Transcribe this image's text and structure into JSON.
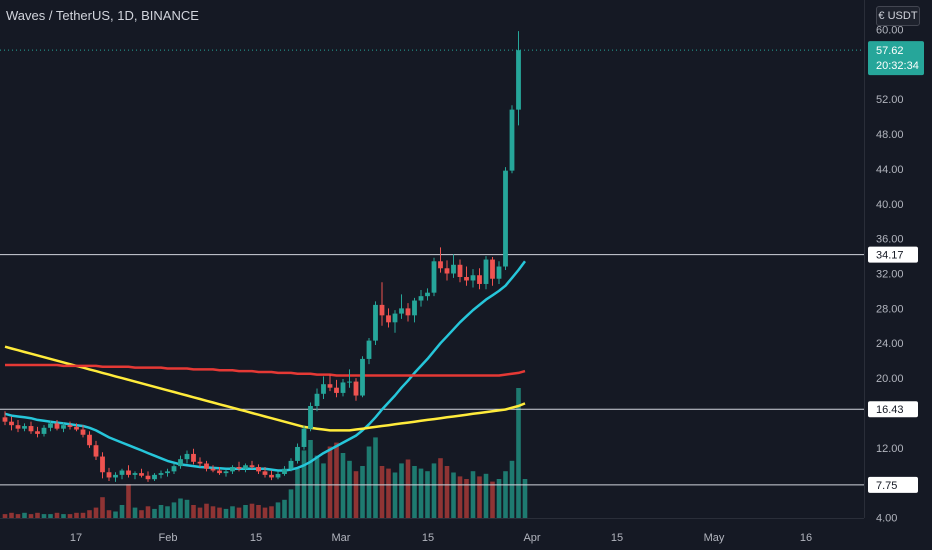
{
  "header": {
    "title": "Waves / TetherUS, 1D, BINANCE"
  },
  "currency": {
    "badge_label": "USDT",
    "symbol_glyph": "€"
  },
  "price_badge": {
    "price": "57.62",
    "countdown": "20:32:34",
    "color": "#26a69a"
  },
  "horizontal_lines": [
    {
      "value": 34.17,
      "label": "34.17"
    },
    {
      "value": 16.43,
      "label": "16.43"
    },
    {
      "value": 7.75,
      "label": "7.75"
    }
  ],
  "colors": {
    "up": "#26a69a",
    "down": "#ef5350",
    "up_volume": "#1e7a70",
    "down_volume": "#8f3434",
    "ma_fast": "#26c6da",
    "ma_mid": "#ffeb3b",
    "ma_slow": "#e53935",
    "background": "#151924"
  },
  "chart_data": {
    "type": "candlestick",
    "title": "Waves / TetherUS, 1D, BINANCE",
    "x_axis": {
      "tick_labels": [
        "17",
        "Feb",
        "15",
        "Mar",
        "15",
        "Apr",
        "15",
        "May",
        "16"
      ]
    },
    "y_axis": {
      "tick_labels": [
        "60.00",
        "56.00",
        "52.00",
        "48.00",
        "44.00",
        "40.00",
        "36.00",
        "32.00",
        "28.00",
        "24.00",
        "20.00",
        "16.00",
        "12.00",
        "8.00",
        "4.00"
      ],
      "range": [
        2,
        62
      ]
    },
    "last_price": 57.62,
    "candles": [
      {
        "o": 15.5,
        "h": 16.2,
        "l": 14.6,
        "c": 15.0
      },
      {
        "o": 15.0,
        "h": 15.6,
        "l": 14.0,
        "c": 14.6
      },
      {
        "o": 14.6,
        "h": 15.2,
        "l": 13.8,
        "c": 14.2
      },
      {
        "o": 14.2,
        "h": 14.8,
        "l": 13.9,
        "c": 14.5
      },
      {
        "o": 14.5,
        "h": 15.0,
        "l": 13.6,
        "c": 13.9
      },
      {
        "o": 13.9,
        "h": 14.4,
        "l": 13.2,
        "c": 13.6
      },
      {
        "o": 13.6,
        "h": 14.6,
        "l": 13.3,
        "c": 14.3
      },
      {
        "o": 14.3,
        "h": 15.1,
        "l": 13.9,
        "c": 14.8
      },
      {
        "o": 14.8,
        "h": 15.2,
        "l": 14.0,
        "c": 14.2
      },
      {
        "o": 14.2,
        "h": 14.9,
        "l": 13.8,
        "c": 14.6
      },
      {
        "o": 14.6,
        "h": 15.0,
        "l": 14.1,
        "c": 14.4
      },
      {
        "o": 14.4,
        "h": 14.8,
        "l": 13.9,
        "c": 14.1
      },
      {
        "o": 14.1,
        "h": 14.6,
        "l": 13.2,
        "c": 13.5
      },
      {
        "o": 13.5,
        "h": 13.9,
        "l": 12.0,
        "c": 12.3
      },
      {
        "o": 12.3,
        "h": 12.8,
        "l": 10.6,
        "c": 11.0
      },
      {
        "o": 11.0,
        "h": 11.5,
        "l": 8.5,
        "c": 9.2
      },
      {
        "o": 9.2,
        "h": 9.7,
        "l": 8.2,
        "c": 8.6
      },
      {
        "o": 8.6,
        "h": 9.2,
        "l": 8.1,
        "c": 8.9
      },
      {
        "o": 8.9,
        "h": 9.6,
        "l": 8.4,
        "c": 9.4
      },
      {
        "o": 9.4,
        "h": 10.0,
        "l": 8.6,
        "c": 8.9
      },
      {
        "o": 8.9,
        "h": 9.3,
        "l": 8.4,
        "c": 9.1
      },
      {
        "o": 9.1,
        "h": 9.6,
        "l": 8.6,
        "c": 8.8
      },
      {
        "o": 8.8,
        "h": 9.3,
        "l": 8.1,
        "c": 8.4
      },
      {
        "o": 8.4,
        "h": 9.1,
        "l": 8.2,
        "c": 8.9
      },
      {
        "o": 8.9,
        "h": 9.4,
        "l": 8.5,
        "c": 9.1
      },
      {
        "o": 9.1,
        "h": 9.6,
        "l": 8.7,
        "c": 9.3
      },
      {
        "o": 9.3,
        "h": 10.2,
        "l": 9.0,
        "c": 9.9
      },
      {
        "o": 9.9,
        "h": 11.1,
        "l": 9.6,
        "c": 10.7
      },
      {
        "o": 10.7,
        "h": 11.7,
        "l": 10.2,
        "c": 11.3
      },
      {
        "o": 11.3,
        "h": 11.9,
        "l": 10.1,
        "c": 10.4
      },
      {
        "o": 10.4,
        "h": 10.9,
        "l": 9.8,
        "c": 10.2
      },
      {
        "o": 10.2,
        "h": 10.5,
        "l": 9.3,
        "c": 9.6
      },
      {
        "o": 9.6,
        "h": 10.0,
        "l": 9.2,
        "c": 9.4
      },
      {
        "o": 9.4,
        "h": 9.8,
        "l": 8.9,
        "c": 9.1
      },
      {
        "o": 9.1,
        "h": 9.5,
        "l": 8.7,
        "c": 9.3
      },
      {
        "o": 9.3,
        "h": 10.0,
        "l": 9.0,
        "c": 9.8
      },
      {
        "o": 9.8,
        "h": 10.4,
        "l": 9.3,
        "c": 9.6
      },
      {
        "o": 9.6,
        "h": 10.2,
        "l": 9.2,
        "c": 10.0
      },
      {
        "o": 10.0,
        "h": 10.5,
        "l": 9.6,
        "c": 9.8
      },
      {
        "o": 9.8,
        "h": 10.1,
        "l": 9.0,
        "c": 9.3
      },
      {
        "o": 9.3,
        "h": 9.8,
        "l": 8.6,
        "c": 8.9
      },
      {
        "o": 8.9,
        "h": 9.4,
        "l": 8.3,
        "c": 8.6
      },
      {
        "o": 8.6,
        "h": 9.3,
        "l": 8.4,
        "c": 9.0
      },
      {
        "o": 9.0,
        "h": 9.9,
        "l": 8.8,
        "c": 9.6
      },
      {
        "o": 9.6,
        "h": 10.8,
        "l": 9.3,
        "c": 10.5
      },
      {
        "o": 10.5,
        "h": 12.5,
        "l": 10.2,
        "c": 12.1
      },
      {
        "o": 12.1,
        "h": 14.5,
        "l": 11.8,
        "c": 14.2
      },
      {
        "o": 14.2,
        "h": 17.2,
        "l": 13.9,
        "c": 16.8
      },
      {
        "o": 16.8,
        "h": 18.8,
        "l": 16.2,
        "c": 18.2
      },
      {
        "o": 18.2,
        "h": 20.2,
        "l": 17.6,
        "c": 19.3
      },
      {
        "o": 19.3,
        "h": 20.4,
        "l": 18.5,
        "c": 18.9
      },
      {
        "o": 18.9,
        "h": 19.8,
        "l": 17.8,
        "c": 18.3
      },
      {
        "o": 18.3,
        "h": 19.9,
        "l": 17.9,
        "c": 19.5
      },
      {
        "o": 19.5,
        "h": 21.0,
        "l": 18.9,
        "c": 19.6
      },
      {
        "o": 19.6,
        "h": 20.0,
        "l": 17.4,
        "c": 18.0
      },
      {
        "o": 18.0,
        "h": 22.5,
        "l": 17.8,
        "c": 22.2
      },
      {
        "o": 22.2,
        "h": 24.6,
        "l": 21.6,
        "c": 24.3
      },
      {
        "o": 24.3,
        "h": 28.8,
        "l": 23.8,
        "c": 28.4
      },
      {
        "o": 28.4,
        "h": 31.0,
        "l": 26.0,
        "c": 27.2
      },
      {
        "o": 27.2,
        "h": 28.0,
        "l": 25.8,
        "c": 26.4
      },
      {
        "o": 26.4,
        "h": 27.8,
        "l": 25.2,
        "c": 27.4
      },
      {
        "o": 27.4,
        "h": 29.6,
        "l": 26.8,
        "c": 28.0
      },
      {
        "o": 28.0,
        "h": 28.6,
        "l": 26.5,
        "c": 27.2
      },
      {
        "o": 27.2,
        "h": 29.2,
        "l": 26.4,
        "c": 28.9
      },
      {
        "o": 28.9,
        "h": 30.1,
        "l": 28.2,
        "c": 29.4
      },
      {
        "o": 29.4,
        "h": 30.3,
        "l": 28.9,
        "c": 29.8
      },
      {
        "o": 29.8,
        "h": 33.8,
        "l": 29.4,
        "c": 33.4
      },
      {
        "o": 33.4,
        "h": 35.0,
        "l": 32.1,
        "c": 32.6
      },
      {
        "o": 32.6,
        "h": 33.5,
        "l": 31.2,
        "c": 32.0
      },
      {
        "o": 32.0,
        "h": 34.2,
        "l": 31.5,
        "c": 33.0
      },
      {
        "o": 33.0,
        "h": 33.6,
        "l": 31.0,
        "c": 31.6
      },
      {
        "o": 31.6,
        "h": 32.8,
        "l": 30.6,
        "c": 31.2
      },
      {
        "o": 31.2,
        "h": 32.5,
        "l": 30.4,
        "c": 31.8
      },
      {
        "o": 31.8,
        "h": 32.6,
        "l": 30.2,
        "c": 30.8
      },
      {
        "o": 30.8,
        "h": 34.0,
        "l": 30.2,
        "c": 33.6
      },
      {
        "o": 33.6,
        "h": 33.9,
        "l": 30.6,
        "c": 31.4
      },
      {
        "o": 31.4,
        "h": 33.4,
        "l": 30.8,
        "c": 32.8
      },
      {
        "o": 32.8,
        "h": 44.2,
        "l": 32.4,
        "c": 43.8
      },
      {
        "o": 43.8,
        "h": 51.3,
        "l": 43.5,
        "c": 50.8
      },
      {
        "o": 50.8,
        "h": 59.8,
        "l": 49.0,
        "c": 57.62
      }
    ],
    "volume": [
      3,
      4,
      3,
      4,
      3,
      4,
      3,
      3,
      4,
      3,
      3,
      4,
      4,
      6,
      8,
      16,
      6,
      5,
      10,
      26,
      8,
      6,
      9,
      7,
      10,
      9,
      12,
      15,
      14,
      10,
      8,
      11,
      9,
      8,
      7,
      9,
      8,
      10,
      11,
      10,
      8,
      9,
      12,
      14,
      22,
      38,
      52,
      60,
      48,
      42,
      55,
      58,
      50,
      44,
      36,
      40,
      55,
      62,
      40,
      38,
      35,
      42,
      45,
      40,
      38,
      36,
      42,
      46,
      40,
      35,
      32,
      30,
      36,
      32,
      34,
      28,
      30,
      36,
      44,
      100,
      30
    ],
    "volume_colors": [
      "down",
      "down",
      "down",
      "up",
      "down",
      "down",
      "up",
      "up",
      "down",
      "up",
      "down",
      "down",
      "down",
      "down",
      "down",
      "down",
      "down",
      "up",
      "up",
      "down",
      "up",
      "down",
      "down",
      "up",
      "up",
      "up",
      "up",
      "up",
      "up",
      "down",
      "down",
      "down",
      "down",
      "down",
      "up",
      "up",
      "down",
      "up",
      "down",
      "down",
      "down",
      "down",
      "up",
      "up",
      "up",
      "up",
      "up",
      "up",
      "up",
      "up",
      "down",
      "down",
      "up",
      "up",
      "down",
      "up",
      "up",
      "up",
      "down",
      "down",
      "up",
      "up",
      "down",
      "up",
      "up",
      "up",
      "up",
      "down",
      "down",
      "up",
      "down",
      "down",
      "up",
      "down",
      "up",
      "down",
      "up",
      "up",
      "up",
      "up",
      "up"
    ],
    "moving_averages": [
      {
        "color": "#26c6da",
        "values": [
          15.9,
          15.7,
          15.6,
          15.5,
          15.4,
          15.2,
          15.1,
          15.0,
          14.9,
          14.8,
          14.7,
          14.6,
          14.5,
          14.3,
          14.0,
          13.6,
          13.2,
          12.9,
          12.6,
          12.3,
          12.0,
          11.7,
          11.4,
          11.1,
          10.8,
          10.5,
          10.3,
          10.1,
          10.0,
          9.9,
          9.8,
          9.75,
          9.7,
          9.65,
          9.6,
          9.6,
          9.6,
          9.6,
          9.6,
          9.6,
          9.6,
          9.5,
          9.4,
          9.4,
          9.5,
          9.7,
          10.0,
          10.4,
          10.9,
          11.4,
          11.8,
          12.2,
          12.6,
          13.0,
          13.4,
          14.0,
          14.7,
          15.5,
          16.4,
          17.2,
          18.0,
          18.9,
          19.7,
          20.6,
          21.4,
          22.2,
          23.1,
          24.0,
          24.8,
          25.6,
          26.4,
          27.1,
          27.8,
          28.4,
          29.0,
          29.5,
          30.0,
          30.6,
          31.5,
          32.4,
          33.4
        ]
      },
      {
        "color": "#ffeb3b",
        "values": [
          23.6,
          23.4,
          23.2,
          23.0,
          22.8,
          22.6,
          22.4,
          22.2,
          22.0,
          21.8,
          21.6,
          21.4,
          21.2,
          21.0,
          20.8,
          20.6,
          20.4,
          20.2,
          20.0,
          19.8,
          19.6,
          19.4,
          19.2,
          19.0,
          18.8,
          18.6,
          18.4,
          18.2,
          18.0,
          17.8,
          17.6,
          17.4,
          17.2,
          17.0,
          16.8,
          16.6,
          16.4,
          16.2,
          16.0,
          15.8,
          15.6,
          15.4,
          15.2,
          15.0,
          14.8,
          14.6,
          14.4,
          14.3,
          14.2,
          14.1,
          14.0,
          14.0,
          14.0,
          14.0,
          14.1,
          14.2,
          14.3,
          14.4,
          14.5,
          14.6,
          14.7,
          14.8,
          14.9,
          15.0,
          15.1,
          15.2,
          15.3,
          15.4,
          15.5,
          15.6,
          15.7,
          15.8,
          15.9,
          16.0,
          16.1,
          16.2,
          16.3,
          16.4,
          16.6,
          16.8,
          17.1
        ]
      },
      {
        "color": "#e53935",
        "values": [
          21.5,
          21.5,
          21.5,
          21.5,
          21.5,
          21.5,
          21.5,
          21.5,
          21.5,
          21.4,
          21.4,
          21.4,
          21.4,
          21.4,
          21.4,
          21.3,
          21.3,
          21.3,
          21.3,
          21.3,
          21.2,
          21.2,
          21.2,
          21.2,
          21.2,
          21.1,
          21.1,
          21.1,
          21.1,
          21.0,
          21.0,
          21.0,
          21.0,
          20.9,
          20.9,
          20.9,
          20.8,
          20.8,
          20.8,
          20.7,
          20.7,
          20.7,
          20.6,
          20.6,
          20.6,
          20.5,
          20.5,
          20.5,
          20.4,
          20.4,
          20.4,
          20.3,
          20.3,
          20.3,
          20.3,
          20.3,
          20.3,
          20.3,
          20.3,
          20.3,
          20.3,
          20.3,
          20.3,
          20.3,
          20.3,
          20.3,
          20.3,
          20.3,
          20.3,
          20.3,
          20.3,
          20.3,
          20.3,
          20.3,
          20.3,
          20.3,
          20.3,
          20.4,
          20.5,
          20.6,
          20.8
        ]
      }
    ]
  }
}
